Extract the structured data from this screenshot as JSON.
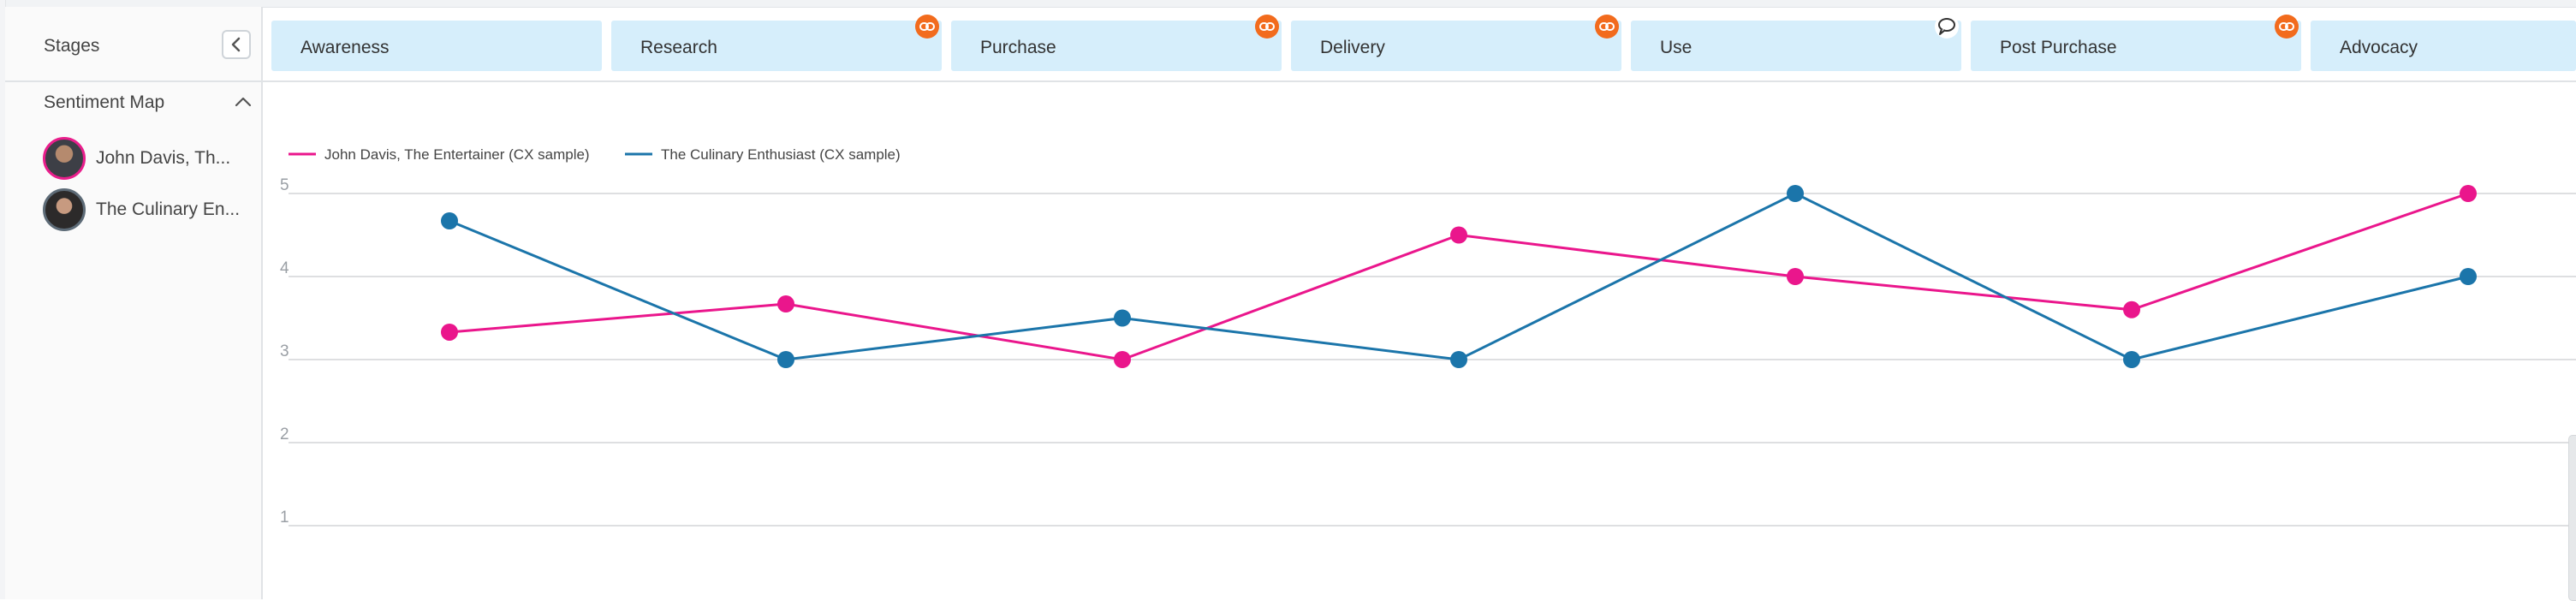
{
  "sidebar": {
    "stages_label": "Stages",
    "section_title": "Sentiment Map",
    "personas": [
      {
        "name": "John Davis, Th...",
        "color": "#e91e8c"
      },
      {
        "name": "The Culinary En...",
        "color": "#1f77b4"
      }
    ]
  },
  "stages": [
    {
      "label": "Awareness",
      "badge": "none"
    },
    {
      "label": "Research",
      "badge": "link-icon"
    },
    {
      "label": "Purchase",
      "badge": "link-icon"
    },
    {
      "label": "Delivery",
      "badge": "link-icon"
    },
    {
      "label": "Use",
      "badge": "comment-icon"
    },
    {
      "label": "Post Purchase",
      "badge": "link-icon"
    },
    {
      "label": "Advocacy",
      "badge": "none"
    }
  ],
  "colors": {
    "stage_bg": "#d6eefb",
    "badge_orange": "#f26b1d",
    "series_pink": "#ea168c",
    "series_blue": "#1b75aa"
  },
  "chart_data": {
    "type": "line",
    "categories": [
      "Awareness",
      "Research",
      "Purchase",
      "Delivery",
      "Use",
      "Post Purchase",
      "Advocacy"
    ],
    "y_ticks": [
      "1",
      "2",
      "3",
      "4",
      "5"
    ],
    "ylim": [
      1,
      5
    ],
    "grid": true,
    "legend_position": "top-left",
    "series": [
      {
        "name": "John Davis, The Entertainer (CX sample)",
        "color": "#ea168c",
        "values": [
          3.33,
          3.67,
          3.0,
          4.5,
          4.0,
          3.6,
          5.0
        ]
      },
      {
        "name": "The Culinary Enthusiast (CX sample)",
        "color": "#1b75aa",
        "values": [
          4.67,
          3.0,
          3.5,
          3.0,
          5.0,
          3.0,
          4.0
        ]
      }
    ]
  }
}
